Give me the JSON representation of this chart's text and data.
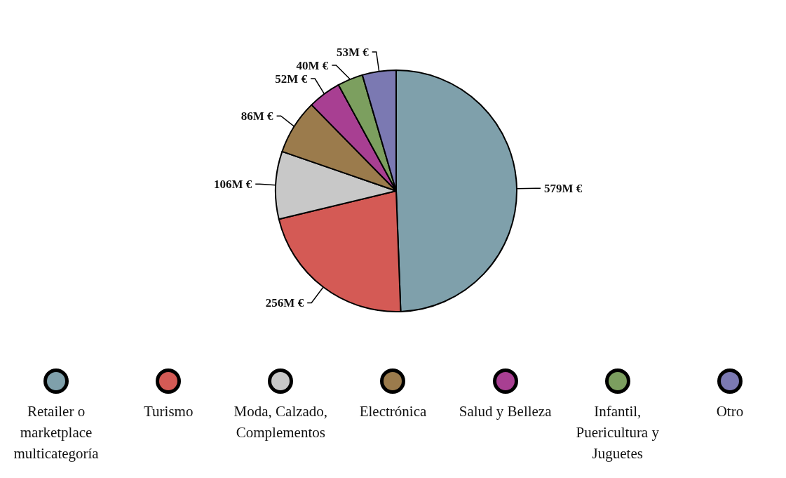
{
  "chart_data": {
    "type": "pie",
    "categories": [
      "Retailer o marketplace multicategoría",
      "Turismo",
      "Moda, Calzado, Complementos",
      "Electrónica",
      "Salud y Belleza",
      "Infantil, Puericultura y Juguetes",
      "Otro"
    ],
    "values": [
      579,
      256,
      106,
      86,
      52,
      40,
      53
    ],
    "value_labels": [
      "579M €",
      "256M €",
      "106M €",
      "86M €",
      "52M €",
      "40M €",
      "53M €"
    ],
    "colors": [
      "#7fa0ab",
      "#d45a55",
      "#c8c8c8",
      "#9b7b4c",
      "#a83f92",
      "#7c9f5f",
      "#7b79b2"
    ],
    "legend": "bottom"
  }
}
